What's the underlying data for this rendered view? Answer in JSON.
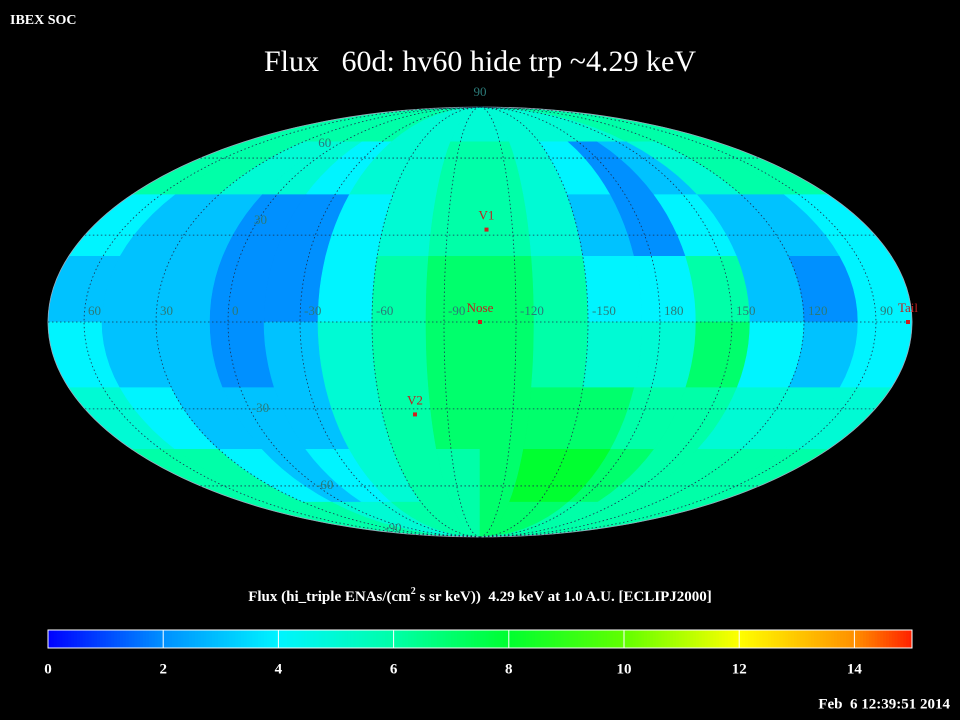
{
  "header": "IBEX SOC",
  "title": "Flux   60d: hv60 hide trp ~4.29 keV",
  "map": {
    "center_lon": -105,
    "lon_labels": [
      60,
      30,
      0,
      -30,
      -60,
      -90,
      -120,
      -150,
      180,
      150,
      120,
      90
    ],
    "lat_labels": [
      90,
      60,
      30,
      -30,
      -60,
      -90
    ],
    "markers": [
      {
        "label": "V1",
        "lon": -108,
        "lat": 32
      },
      {
        "label": "Nose",
        "lon": -105,
        "lat": 0
      },
      {
        "label": "V2",
        "lon": -75,
        "lat": -32
      },
      {
        "label": "Tail",
        "lon": 75,
        "lat": 0
      }
    ],
    "flux": {
      "values": [
        [
          6,
          6,
          6,
          6,
          6,
          5,
          5,
          5,
          5,
          5,
          5,
          5,
          5,
          6,
          6,
          6
        ],
        [
          6,
          6,
          5,
          5,
          4,
          5,
          5,
          6,
          6,
          5,
          4,
          2,
          3,
          5,
          6,
          6
        ],
        [
          4,
          3,
          3,
          2,
          2,
          4,
          5,
          6,
          6,
          5,
          3,
          2,
          4,
          3,
          3,
          4
        ],
        [
          3,
          3,
          3,
          2,
          2,
          4,
          6,
          7,
          7,
          6,
          4,
          4,
          6,
          3,
          2,
          4
        ],
        [
          4,
          3,
          3,
          2,
          3,
          5,
          6,
          7,
          7,
          6,
          5,
          5,
          7,
          4,
          3,
          4
        ],
        [
          5,
          4,
          3,
          3,
          3,
          5,
          6,
          7,
          7,
          7,
          7,
          6,
          6,
          5,
          5,
          5
        ],
        [
          6,
          6,
          4,
          3,
          4,
          5,
          6,
          6,
          7,
          8,
          8,
          7,
          6,
          6,
          6,
          6
        ],
        [
          6,
          6,
          6,
          5,
          5,
          6,
          6,
          6,
          7,
          7,
          7,
          6,
          6,
          6,
          6,
          6
        ]
      ]
    }
  },
  "colorbar": {
    "label_parts": [
      "Flux (hi_triple ENAs/(cm",
      "2",
      " s sr keV))  4.29 keV at 1.0 A.U. [ECLIPJ2000]"
    ],
    "clim": [
      0,
      15
    ],
    "ticks": [
      0,
      2,
      4,
      6,
      8,
      10,
      12,
      14
    ],
    "colors": [
      "#0000ff",
      "#0090ff",
      "#00f4ff",
      "#00ffa8",
      "#00ff30",
      "#60ff00",
      "#ffff00",
      "#ff9000",
      "#ff2000"
    ]
  },
  "timestamp": "Feb  6 12:39:51 2014"
}
